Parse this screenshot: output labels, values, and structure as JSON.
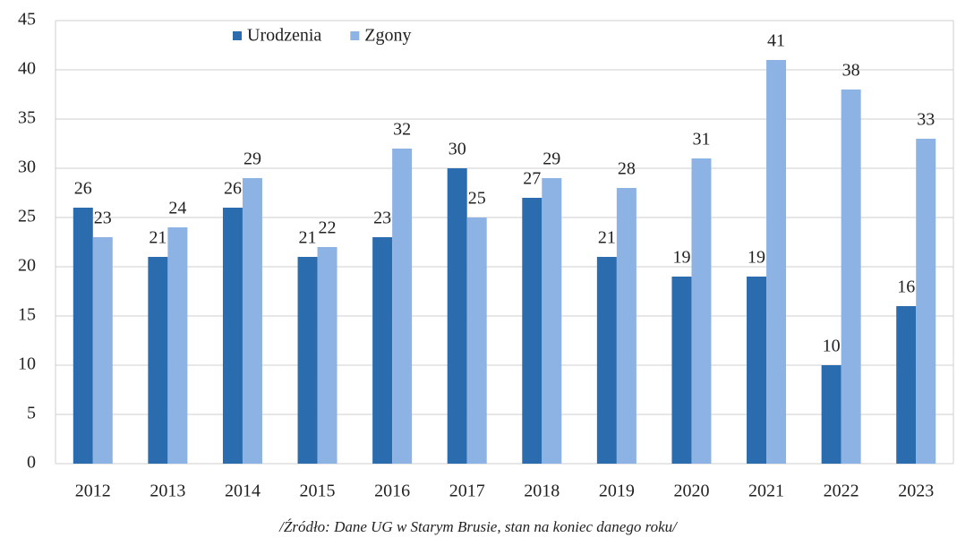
{
  "chart_data": {
    "type": "bar",
    "categories": [
      "2012",
      "2013",
      "2014",
      "2015",
      "2016",
      "2017",
      "2018",
      "2019",
      "2020",
      "2021",
      "2022",
      "2023"
    ],
    "series": [
      {
        "name": "Urodzenia",
        "color": "#2b6cae",
        "values": [
          26,
          21,
          26,
          21,
          23,
          30,
          27,
          21,
          19,
          19,
          10,
          16
        ]
      },
      {
        "name": "Zgony",
        "color": "#8db3e5",
        "values": [
          23,
          24,
          29,
          22,
          32,
          25,
          29,
          28,
          31,
          41,
          38,
          33
        ]
      }
    ],
    "ylim": [
      0,
      45
    ],
    "yticks": [
      0,
      5,
      10,
      15,
      20,
      25,
      30,
      35,
      40,
      45
    ],
    "grid": true,
    "legend": "top-left",
    "note": "/Źródło: Dane UG w Starym Brusie, stan na koniec danego roku/"
  }
}
